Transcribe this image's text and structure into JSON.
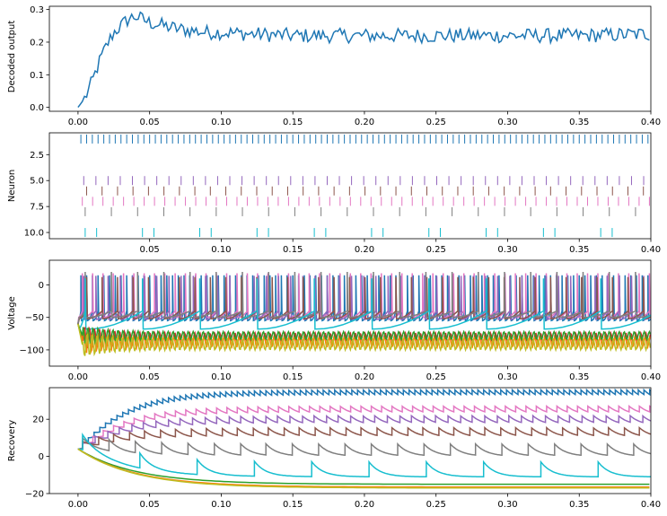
{
  "chart_data": [
    {
      "type": "line",
      "ylabel": "Decoded output",
      "xlim": [
        -0.02,
        0.4
      ],
      "ylim": [
        -0.012,
        0.31
      ],
      "xticks": [
        "0.00",
        "0.05",
        "0.10",
        "0.15",
        "0.20",
        "0.25",
        "0.30",
        "0.35",
        "0.40"
      ],
      "yticks": [
        "0.0",
        "0.1",
        "0.2",
        "0.3"
      ],
      "series": [
        {
          "color": "#1f77b4",
          "description": "rises from 0 to ~0.28 by t=0.04, then fluctuates around 0.22",
          "x": [
            0.0,
            0.005,
            0.01,
            0.015,
            0.02,
            0.025,
            0.03,
            0.035,
            0.04,
            0.045,
            0.05,
            0.06,
            0.07,
            0.08,
            0.09,
            0.1,
            0.12,
            0.15,
            0.2,
            0.25,
            0.3,
            0.35,
            0.4
          ],
          "y": [
            0.0,
            0.03,
            0.08,
            0.14,
            0.19,
            0.23,
            0.25,
            0.27,
            0.28,
            0.27,
            0.26,
            0.25,
            0.24,
            0.235,
            0.23,
            0.23,
            0.225,
            0.22,
            0.22,
            0.22,
            0.22,
            0.22,
            0.225
          ]
        }
      ]
    },
    {
      "type": "scatter",
      "ylabel": "Neuron",
      "xlim": [
        -0.02,
        0.4
      ],
      "ylim": [
        10.6,
        0.4
      ],
      "xticks": [
        "0.05",
        "0.10",
        "0.15",
        "0.20",
        "0.25",
        "0.30",
        "0.35",
        "0.40"
      ],
      "yticks": [
        "2.5",
        "5.0",
        "7.5",
        "10.0"
      ],
      "series": [
        {
          "neuron": 1,
          "color": "#1f77b4",
          "interval": 0.004,
          "start": 0.002
        },
        {
          "neuron": 5,
          "color": "#9467bd",
          "interval": 0.0085,
          "start": 0.004
        },
        {
          "neuron": 6,
          "color": "#8c564b",
          "interval": 0.0108,
          "start": 0.006
        },
        {
          "neuron": 7,
          "color": "#e377c2",
          "interval": 0.0072,
          "start": 0.003
        },
        {
          "neuron": 8,
          "color": "#7f7f7f",
          "interval": 0.0183,
          "start": 0.005
        },
        {
          "neuron": 10,
          "color": "#17becf",
          "interval": 0.04,
          "start": 0.005,
          "second_offset": 0.008
        }
      ]
    },
    {
      "type": "line",
      "ylabel": "Voltage",
      "xlim": [
        -0.02,
        0.4
      ],
      "ylim": [
        -125,
        38
      ],
      "xticks": [
        "0.00",
        "0.05",
        "0.10",
        "0.15",
        "0.20",
        "0.25",
        "0.30",
        "0.35",
        "0.40"
      ],
      "yticks": [
        "0",
        "−50",
        "−100"
      ],
      "series": [
        {
          "color": "#1f77b4",
          "interval": 0.004,
          "start": 0.002,
          "peak": 15,
          "reset": -55
        },
        {
          "color": "#e377c2",
          "interval": 0.0072,
          "start": 0.003,
          "peak": 18,
          "reset": -50
        },
        {
          "color": "#9467bd",
          "interval": 0.0085,
          "start": 0.004,
          "peak": 14,
          "reset": -53
        },
        {
          "color": "#8c564b",
          "interval": 0.0108,
          "start": 0.006,
          "peak": 12,
          "reset": -52
        },
        {
          "color": "#7f7f7f",
          "interval": 0.0183,
          "start": 0.005,
          "peak": 20,
          "reset": -50
        },
        {
          "color": "#17becf",
          "interval": 0.04,
          "start": 0.005,
          "peak": 10,
          "reset": -68
        },
        {
          "color": "#d62728",
          "kind": "subthreshold",
          "center": -82,
          "amp": 8
        },
        {
          "color": "#ff7f0e",
          "kind": "subthreshold",
          "center": -88,
          "amp": 8
        },
        {
          "color": "#2ca02c",
          "kind": "subthreshold",
          "center": -78,
          "amp": 6
        },
        {
          "color": "#bcbd22",
          "kind": "subthreshold",
          "center": -92,
          "amp": 8
        }
      ]
    },
    {
      "type": "line",
      "ylabel": "Recovery",
      "xlim": [
        -0.02,
        0.4
      ],
      "ylim": [
        -20,
        37
      ],
      "xticks": [
        "0.00",
        "0.05",
        "0.10",
        "0.15",
        "0.20",
        "0.25",
        "0.30",
        "0.35",
        "0.40"
      ],
      "yticks": [
        "20",
        "0",
        "−20"
      ],
      "series": [
        {
          "color": "#1f77b4",
          "steady": 32,
          "interval": 0.004,
          "jump": 2.5
        },
        {
          "color": "#e377c2",
          "steady": 25,
          "interval": 0.0072,
          "jump": 3
        },
        {
          "color": "#9467bd",
          "steady": 20,
          "interval": 0.0085,
          "jump": 3.5
        },
        {
          "color": "#8c564b",
          "steady": 14,
          "interval": 0.0108,
          "jump": 4
        },
        {
          "color": "#7f7f7f",
          "steady": 6,
          "interval": 0.0183,
          "jump": 6
        },
        {
          "color": "#17becf",
          "steady": -3,
          "interval": 0.04,
          "jump": 8
        },
        {
          "color": "#2ca02c",
          "kind": "decay",
          "end": -15
        },
        {
          "color": "#ff7f0e",
          "kind": "decay",
          "end": -16.5
        },
        {
          "color": "#bcbd22",
          "kind": "decay",
          "end": -17
        }
      ]
    }
  ]
}
